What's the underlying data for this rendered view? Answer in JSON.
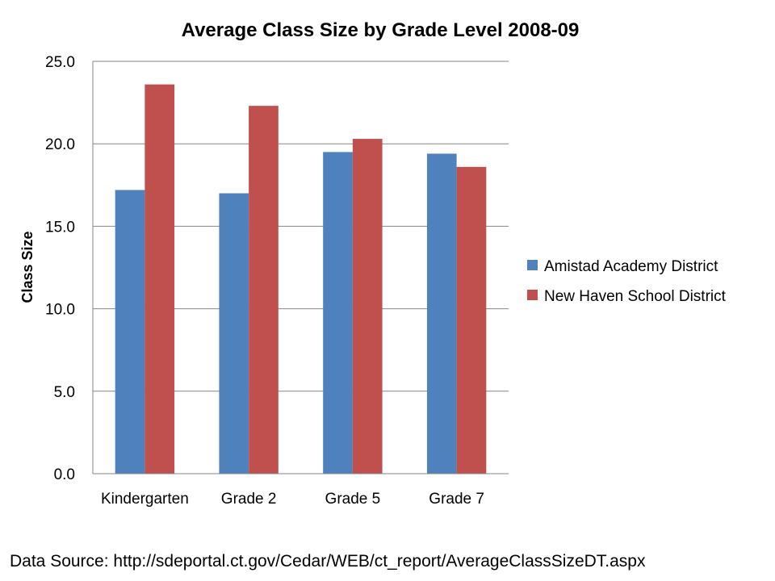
{
  "chart_data": {
    "type": "bar",
    "title": "Average Class Size by Grade Level 2008-09",
    "xlabel": "",
    "ylabel": "Class Size",
    "categories": [
      "Kindergarten",
      "Grade  2",
      "Grade  5",
      "Grade  7"
    ],
    "series": [
      {
        "name": "Amistad Academy District",
        "color": "#4F81BD",
        "values": [
          17.2,
          17.0,
          19.5,
          19.4
        ]
      },
      {
        "name": "New Haven School District",
        "color": "#C0504D",
        "values": [
          23.6,
          22.3,
          20.3,
          18.6
        ]
      }
    ],
    "ylim": [
      0,
      25
    ],
    "yticks": [
      "0.0",
      "5.0",
      "10.0",
      "15.0",
      "20.0",
      "25.0"
    ],
    "grid": true,
    "legend_position": "right"
  },
  "footer": {
    "source": "Data Source: http://sdeportal.ct.gov/Cedar/WEB/ct_report/AverageClassSizeDT.aspx"
  }
}
